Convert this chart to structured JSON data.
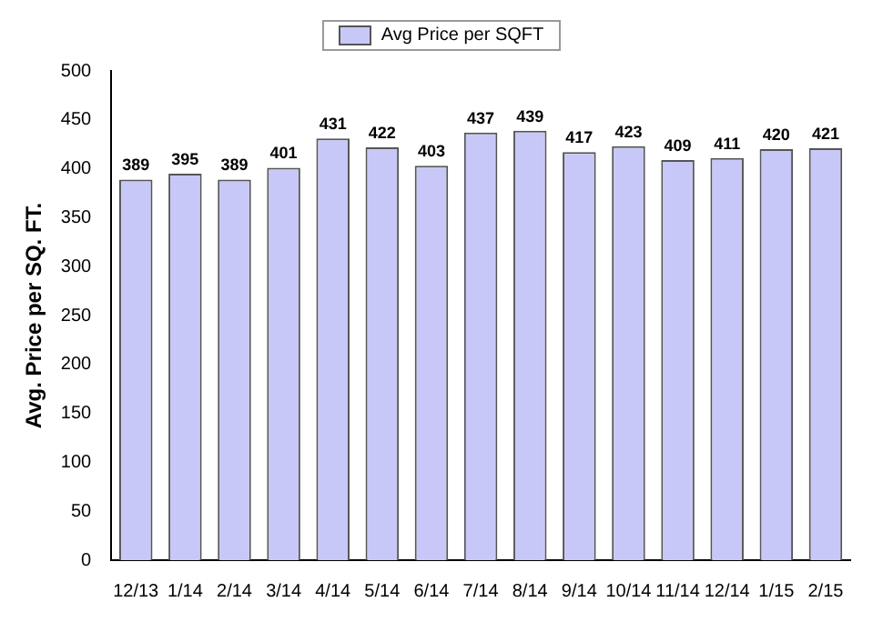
{
  "chart_data": {
    "type": "bar",
    "ylabel": "Avg. Price per SQ. FT.",
    "categories": [
      "12/13",
      "1/14",
      "2/14",
      "3/14",
      "4/14",
      "5/14",
      "6/14",
      "7/14",
      "8/14",
      "9/14",
      "10/14",
      "11/14",
      "12/14",
      "1/15",
      "2/15"
    ],
    "series": [
      {
        "name": "Avg Price per SQFT",
        "color": "#c8c8f8",
        "values": [
          389,
          395,
          389,
          401,
          431,
          422,
          403,
          437,
          439,
          417,
          423,
          409,
          411,
          420,
          421
        ]
      }
    ],
    "ylim": [
      0,
      500
    ],
    "yticks": [
      0,
      50,
      100,
      150,
      200,
      250,
      300,
      350,
      400,
      450,
      500
    ],
    "data_labels": true,
    "legend": "top",
    "grid": false
  }
}
